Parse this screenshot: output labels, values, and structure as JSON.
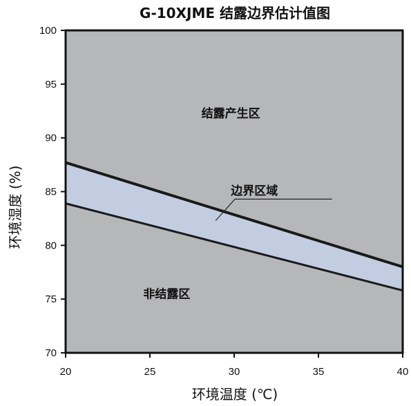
{
  "chart_data": {
    "type": "area",
    "title": "G-10XJME 结露边界估计值图",
    "xlabel": "环境温度 (℃)",
    "ylabel": "环境湿度 (%)",
    "xlim": [
      20,
      40
    ],
    "ylim": [
      70,
      100
    ],
    "xticks": [
      20,
      25,
      30,
      35,
      40
    ],
    "yticks": [
      70,
      75,
      80,
      85,
      90,
      95,
      100
    ],
    "grid": false,
    "colors": {
      "plot_background": "#b6b7b9",
      "boundary_fill": "#c3cde2",
      "boundary_line": "#1a1a1a",
      "axis": "#111111"
    },
    "upper_boundary": {
      "x": [
        20,
        40
      ],
      "y": [
        87.7,
        78.0
      ]
    },
    "lower_boundary": {
      "x": [
        20,
        40
      ],
      "y": [
        83.9,
        75.8
      ]
    },
    "annotations": [
      {
        "text": "结露产生区",
        "x": 29.8,
        "y": 92.3,
        "region": "condensation"
      },
      {
        "text": "边界区域",
        "x": 31.2,
        "y": 85.1,
        "region": "boundary",
        "leader_to": [
          28.9,
          82.3
        ],
        "leader_end": [
          35.8,
          84.3
        ]
      },
      {
        "text": "非结露区",
        "x": 26.0,
        "y": 75.5,
        "region": "no-condensation"
      }
    ]
  }
}
